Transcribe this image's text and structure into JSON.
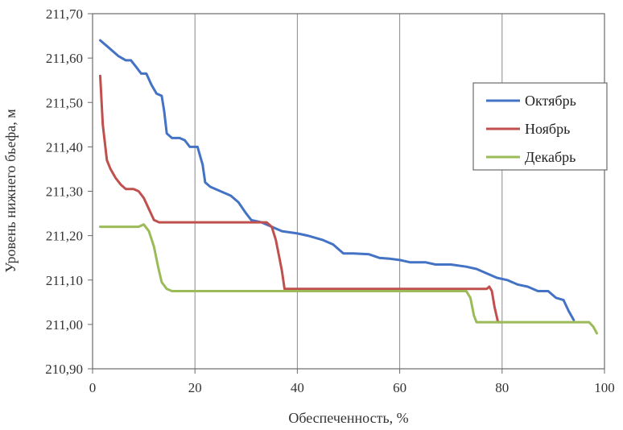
{
  "chart_data": {
    "type": "line",
    "xlabel": "Обеспеченность, %",
    "ylabel": "Уровень нижнего бьефа, м",
    "xlim": [
      0,
      100
    ],
    "ylim": [
      210.9,
      211.7
    ],
    "x_ticks": [
      "0",
      "20",
      "40",
      "60",
      "80",
      "100"
    ],
    "y_ticks": [
      "210,90",
      "211,00",
      "211,10",
      "211,20",
      "211,30",
      "211,40",
      "211,50",
      "211,60",
      "211,70"
    ],
    "grid": "vertical",
    "legend_position": "right",
    "series": [
      {
        "name": "Октябрь",
        "color": "#4472c4",
        "points": [
          [
            1.5,
            211.64
          ],
          [
            3,
            211.625
          ],
          [
            5,
            211.605
          ],
          [
            6.5,
            211.595
          ],
          [
            7.5,
            211.595
          ],
          [
            8.5,
            211.58
          ],
          [
            9.5,
            211.565
          ],
          [
            10.5,
            211.565
          ],
          [
            11.5,
            211.54
          ],
          [
            12.5,
            211.52
          ],
          [
            13.5,
            211.515
          ],
          [
            14,
            211.48
          ],
          [
            14.5,
            211.43
          ],
          [
            15.5,
            211.42
          ],
          [
            17,
            211.42
          ],
          [
            18,
            211.415
          ],
          [
            19,
            211.4
          ],
          [
            20.5,
            211.4
          ],
          [
            21.5,
            211.36
          ],
          [
            22,
            211.32
          ],
          [
            23,
            211.31
          ],
          [
            25,
            211.3
          ],
          [
            27,
            211.29
          ],
          [
            28.5,
            211.275
          ],
          [
            30,
            211.25
          ],
          [
            31,
            211.235
          ],
          [
            33,
            211.23
          ],
          [
            35,
            211.22
          ],
          [
            37,
            211.21
          ],
          [
            40,
            211.205
          ],
          [
            42,
            211.2
          ],
          [
            45,
            211.19
          ],
          [
            47,
            211.18
          ],
          [
            49,
            211.16
          ],
          [
            51,
            211.16
          ],
          [
            54,
            211.158
          ],
          [
            56,
            211.15
          ],
          [
            58,
            211.148
          ],
          [
            60,
            211.145
          ],
          [
            62,
            211.14
          ],
          [
            65,
            211.14
          ],
          [
            67,
            211.135
          ],
          [
            70,
            211.135
          ],
          [
            73,
            211.13
          ],
          [
            75,
            211.125
          ],
          [
            77,
            211.115
          ],
          [
            79,
            211.105
          ],
          [
            81,
            211.1
          ],
          [
            83,
            211.09
          ],
          [
            85,
            211.085
          ],
          [
            87,
            211.075
          ],
          [
            89,
            211.075
          ],
          [
            90.5,
            211.06
          ],
          [
            92,
            211.055
          ],
          [
            93,
            211.03
          ],
          [
            94,
            211.01
          ]
        ]
      },
      {
        "name": "Ноябрь",
        "color": "#c0504d",
        "points": [
          [
            1.5,
            211.56
          ],
          [
            2,
            211.45
          ],
          [
            2.8,
            211.37
          ],
          [
            3.5,
            211.35
          ],
          [
            4.5,
            211.33
          ],
          [
            5.5,
            211.315
          ],
          [
            6.5,
            211.305
          ],
          [
            8,
            211.305
          ],
          [
            9,
            211.3
          ],
          [
            10,
            211.285
          ],
          [
            11,
            211.26
          ],
          [
            12,
            211.235
          ],
          [
            13,
            211.23
          ],
          [
            14,
            211.23
          ],
          [
            20,
            211.23
          ],
          [
            30,
            211.23
          ],
          [
            34,
            211.23
          ],
          [
            35,
            211.22
          ],
          [
            35.8,
            211.19
          ],
          [
            36.5,
            211.15
          ],
          [
            37,
            211.12
          ],
          [
            37.5,
            211.08
          ],
          [
            40,
            211.08
          ],
          [
            50,
            211.08
          ],
          [
            60,
            211.08
          ],
          [
            70,
            211.08
          ],
          [
            77,
            211.08
          ],
          [
            77.5,
            211.085
          ],
          [
            78,
            211.075
          ],
          [
            78.5,
            211.04
          ],
          [
            79.2,
            211.005
          ],
          [
            80,
            211.005
          ]
        ]
      },
      {
        "name": "Декабрь",
        "color": "#9bbb59",
        "points": [
          [
            1.5,
            211.22
          ],
          [
            5,
            211.22
          ],
          [
            9,
            211.22
          ],
          [
            10,
            211.225
          ],
          [
            11,
            211.21
          ],
          [
            12,
            211.175
          ],
          [
            12.8,
            211.13
          ],
          [
            13.5,
            211.095
          ],
          [
            14.5,
            211.08
          ],
          [
            15.5,
            211.075
          ],
          [
            20,
            211.075
          ],
          [
            30,
            211.075
          ],
          [
            40,
            211.075
          ],
          [
            50,
            211.075
          ],
          [
            60,
            211.075
          ],
          [
            70,
            211.075
          ],
          [
            73,
            211.075
          ],
          [
            73.8,
            211.06
          ],
          [
            74.5,
            211.02
          ],
          [
            75,
            211.005
          ],
          [
            80,
            211.005
          ],
          [
            90,
            211.005
          ],
          [
            96,
            211.005
          ],
          [
            97,
            211.005
          ],
          [
            97.8,
            210.995
          ],
          [
            98.5,
            210.98
          ]
        ]
      }
    ]
  }
}
